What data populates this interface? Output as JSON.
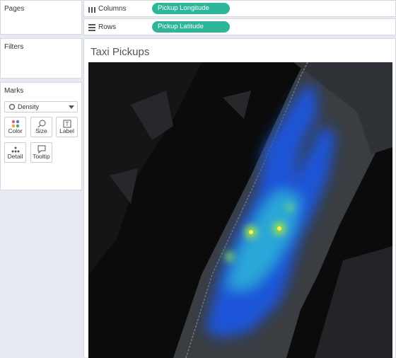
{
  "panels": {
    "pages": "Pages",
    "filters": "Filters",
    "marks": "Marks"
  },
  "marks": {
    "type": "Density",
    "buttons": [
      "Color",
      "Size",
      "Label",
      "Detail",
      "Tooltip"
    ]
  },
  "shelves": {
    "columns": {
      "label": "Columns",
      "pill": "Pickup Longitude"
    },
    "rows": {
      "label": "Rows",
      "pill": "Pickup Latitude"
    }
  },
  "view": {
    "title": "Taxi Pickups"
  }
}
